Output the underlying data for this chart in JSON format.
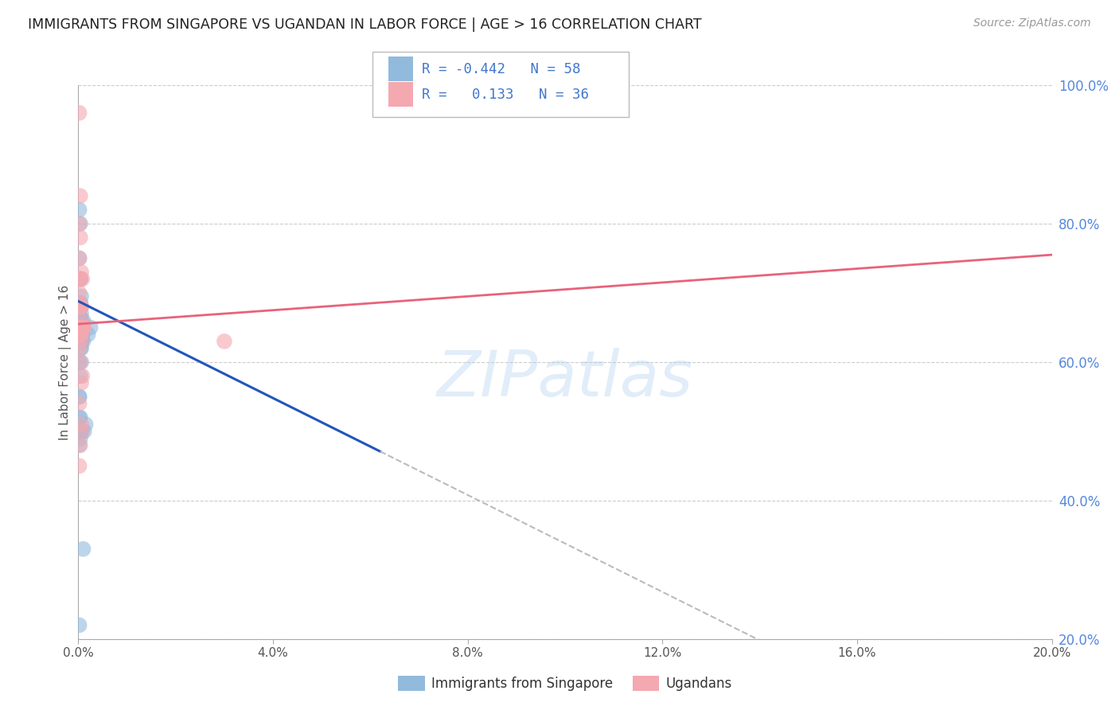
{
  "title": "IMMIGRANTS FROM SINGAPORE VS UGANDAN IN LABOR FORCE | AGE > 16 CORRELATION CHART",
  "source": "Source: ZipAtlas.com",
  "ylabel": "In Labor Force | Age > 16",
  "right_yticks": [
    1.0,
    0.8,
    0.6,
    0.4,
    0.2
  ],
  "right_ytick_labels": [
    "100.0%",
    "80.0%",
    "60.0%",
    "40.0%",
    "20.0%"
  ],
  "watermark": "ZIPatlas",
  "legend_r1": "R = -0.442",
  "legend_n1": "N = 58",
  "legend_r2": "R =   0.133",
  "legend_n2": "N = 36",
  "legend_label1": "Immigrants from Singapore",
  "legend_label2": "Ugandans",
  "blue_color": "#92BADD",
  "pink_color": "#F4A8B0",
  "blue_line_color": "#2255BB",
  "pink_line_color": "#E8637A",
  "dashed_line_color": "#BBBBBB",
  "singapore_x": [
    0.0002,
    0.0004,
    0.0006,
    0.0004,
    0.0003,
    0.0002,
    0.0005,
    0.0003,
    0.0006,
    0.0004,
    0.0007,
    0.0008,
    0.001,
    0.0005,
    0.0002,
    0.0004,
    0.0006,
    0.0002,
    0.0004,
    0.0006,
    0.0008,
    0.0004,
    0.0006,
    0.0002,
    0.0004,
    0.0002,
    0.0006,
    0.0008,
    0.0004,
    0.0006,
    0.0002,
    0.0004,
    0.0008,
    0.0006,
    0.0004,
    0.0002,
    0.0004,
    0.0006,
    0.0008,
    0.001,
    0.0004,
    0.0006,
    0.0002,
    0.0004,
    0.001,
    0.0006,
    0.0004,
    0.0002,
    0.0006,
    0.0004,
    0.0002,
    0.0015,
    0.0012,
    0.002,
    0.0025,
    0.0004,
    0.0002,
    0.0006
  ],
  "singapore_y": [
    0.685,
    0.72,
    0.695,
    0.655,
    0.66,
    0.64,
    0.685,
    0.667,
    0.66,
    0.65,
    0.63,
    0.64,
    0.66,
    0.62,
    0.6,
    0.58,
    0.65,
    0.55,
    0.63,
    0.62,
    0.65,
    0.68,
    0.67,
    0.82,
    0.8,
    0.75,
    0.64,
    0.64,
    0.52,
    0.5,
    0.48,
    0.72,
    0.65,
    0.66,
    0.49,
    0.52,
    0.63,
    0.65,
    0.64,
    0.63,
    0.65,
    0.6,
    0.55,
    0.68,
    0.33,
    0.5,
    0.66,
    0.64,
    0.63,
    0.65,
    0.22,
    0.51,
    0.5,
    0.64,
    0.65,
    0.65,
    0.66,
    0.63
  ],
  "ugandan_x": [
    0.0002,
    0.0004,
    0.0002,
    0.0004,
    0.0006,
    0.0002,
    0.0004,
    0.0002,
    0.0006,
    0.0004,
    0.0002,
    0.0008,
    0.0006,
    0.0004,
    0.0006,
    0.0008,
    0.0004,
    0.0006,
    0.0002,
    0.0004,
    0.0006,
    0.0004,
    0.0002,
    0.0006,
    0.0008,
    0.001,
    0.0006,
    0.0004,
    0.0002,
    0.0012,
    0.0008,
    0.0006,
    0.0004,
    0.0002,
    0.03,
    0.0006
  ],
  "ugandan_y": [
    0.685,
    0.72,
    0.7,
    0.65,
    0.66,
    0.75,
    0.78,
    0.8,
    0.73,
    0.68,
    0.62,
    0.65,
    0.63,
    0.6,
    0.57,
    0.72,
    0.65,
    0.64,
    0.96,
    0.84,
    0.68,
    0.65,
    0.54,
    0.64,
    0.5,
    0.65,
    0.68,
    0.72,
    0.45,
    0.65,
    0.58,
    0.51,
    0.48,
    0.64,
    0.63,
    0.68
  ],
  "xmin": 0.0,
  "xmax": 0.2,
  "ymin": 0.2,
  "ymax": 1.0,
  "blue_line_x0": 0.0,
  "blue_line_y0": 0.688,
  "blue_line_slope": -3.5,
  "blue_solid_xend": 0.062,
  "blue_dash_xend": 0.155,
  "pink_line_x0": 0.0,
  "pink_line_y0": 0.655,
  "pink_line_xend": 0.2,
  "pink_line_yend": 0.755,
  "background_color": "#ffffff",
  "grid_color": "#CCCCCC",
  "axis_color": "#AAAAAA",
  "title_color": "#222222",
  "source_color": "#999999",
  "ylabel_color": "#555555",
  "xtick_color": "#555555",
  "ytick_color_right": "#5588DD",
  "legend_text_color": "#333333",
  "legend_value_color": "#4477CC",
  "legend_border_color": "#BBBBBB"
}
